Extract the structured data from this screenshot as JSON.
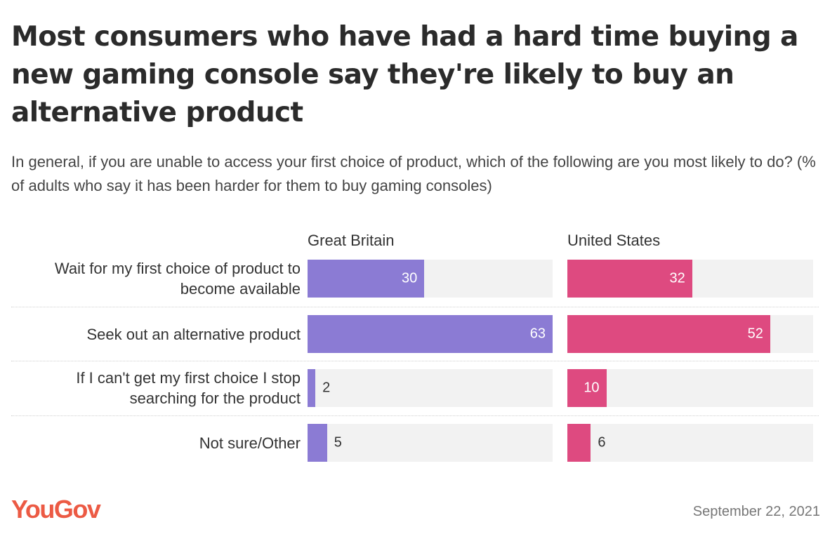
{
  "title": "Most consumers who have had a hard time buying a new gaming console say they're likely to buy an alternative product",
  "subtitle": "In general, if you are unable to access your first choice of product, which of the following are you most likely to do? (% of adults who say it has been harder for them to buy gaming consoles)",
  "logo": "YouGov",
  "date": "September 22, 2021",
  "colors": {
    "gb": "#8b7bd4",
    "us": "#de4a80",
    "track": "#f2f2f2",
    "logo": "#ec5a44"
  },
  "chart_data": {
    "type": "bar",
    "orientation": "horizontal",
    "categories": [
      "Wait for my first choice of product to become available",
      "Seek out an alternative product",
      "If I can't get my first choice I stop searching for the product",
      "Not sure/Other"
    ],
    "series": [
      {
        "name": "Great Britain",
        "values": [
          30,
          63,
          2,
          5
        ]
      },
      {
        "name": "United States",
        "values": [
          32,
          52,
          10,
          6
        ]
      }
    ],
    "xlim": [
      0,
      63
    ],
    "unit": "%"
  }
}
